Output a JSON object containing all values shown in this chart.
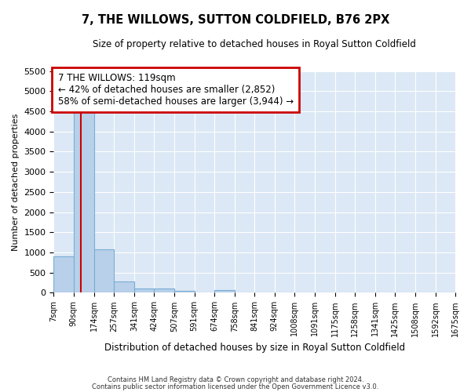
{
  "title": "7, THE WILLOWS, SUTTON COLDFIELD, B76 2PX",
  "subtitle": "Size of property relative to detached houses in Royal Sutton Coldfield",
  "xlabel": "Distribution of detached houses by size in Royal Sutton Coldfield",
  "ylabel": "Number of detached properties",
  "footer_line1": "Contains HM Land Registry data © Crown copyright and database right 2024.",
  "footer_line2": "Contains public sector information licensed under the Open Government Licence v3.0.",
  "annotation_title": "7 THE WILLOWS: 119sqm",
  "annotation_line1": "← 42% of detached houses are smaller (2,852)",
  "annotation_line2": "58% of semi-detached houses are larger (3,944) →",
  "property_size": 119,
  "bar_edges": [
    7,
    90,
    174,
    257,
    341,
    424,
    507,
    591,
    674,
    758,
    841,
    924,
    1008,
    1091,
    1175,
    1258,
    1341,
    1425,
    1508,
    1592,
    1675
  ],
  "bar_values": [
    900,
    4550,
    1070,
    280,
    100,
    100,
    50,
    0,
    60,
    0,
    0,
    0,
    0,
    0,
    0,
    0,
    0,
    0,
    0,
    0
  ],
  "bar_color": "#b8d0ea",
  "bar_edge_color": "#7aadd4",
  "vline_color": "#cc0000",
  "annotation_box_color": "#cc0000",
  "background_color": "#dce8f5",
  "ylim": [
    0,
    5500
  ],
  "yticks": [
    0,
    500,
    1000,
    1500,
    2000,
    2500,
    3000,
    3500,
    4000,
    4500,
    5000,
    5500
  ]
}
